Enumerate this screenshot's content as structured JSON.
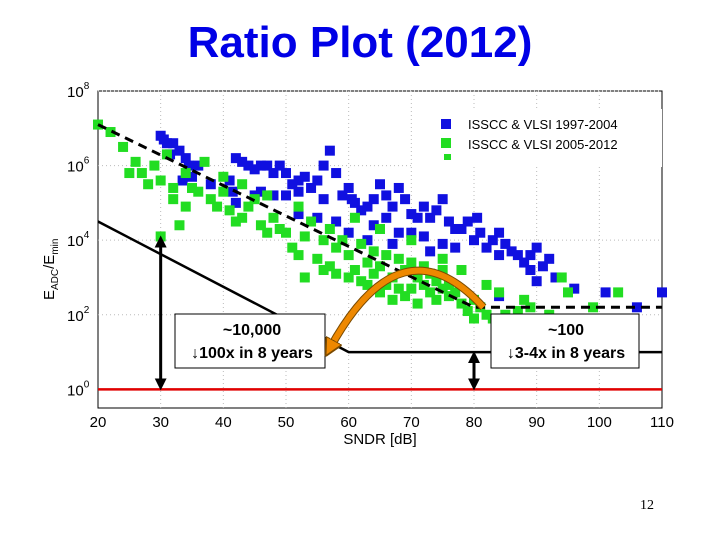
{
  "slide": {
    "title": "Ratio Plot (2012)",
    "page_number": "12"
  },
  "chart_data": {
    "type": "scatter",
    "xlabel": "SNDR [dB]",
    "ylabel": "E_ADC/E_min",
    "ylabel_parts": {
      "base": "E",
      "sub1": "ADC",
      "slash": "/E",
      "sub2": "min"
    },
    "x_ticks": [
      "20",
      "30",
      "40",
      "50",
      "60",
      "70",
      "80",
      "90",
      "100",
      "110"
    ],
    "y_ticks": [
      {
        "base": "10",
        "exp": "0"
      },
      {
        "base": "10",
        "exp": "2"
      },
      {
        "base": "10",
        "exp": "4"
      },
      {
        "base": "10",
        "exp": "6"
      },
      {
        "base": "10",
        "exp": "8"
      }
    ],
    "xlim": [
      20,
      110
    ],
    "ylim_log10": [
      -0.5,
      8
    ],
    "y_scale": "log",
    "grid": true,
    "legend_position": "top-right",
    "colors": {
      "blue": "#1010e0",
      "green": "#22dd22",
      "reference": "#e00000",
      "bound": "#000000",
      "arrow": "#ee8800"
    },
    "series": [
      {
        "name": "ISSCC & VLSI 1997-2004",
        "color": "#1010e0",
        "points": [
          [
            30,
            6.8
          ],
          [
            30.5,
            6.7
          ],
          [
            31,
            6.6
          ],
          [
            32,
            6.6
          ],
          [
            31.5,
            6.3
          ],
          [
            33,
            6.4
          ],
          [
            34,
            6.2
          ],
          [
            34.5,
            6.0
          ],
          [
            36,
            6.0
          ],
          [
            35,
            5.7
          ],
          [
            33.5,
            5.6
          ],
          [
            41,
            5.6
          ],
          [
            41.5,
            5.3
          ],
          [
            42,
            6.2
          ],
          [
            43,
            6.1
          ],
          [
            44,
            6.0
          ],
          [
            45,
            5.9
          ],
          [
            46,
            6.0
          ],
          [
            47,
            6.0
          ],
          [
            48,
            5.8
          ],
          [
            49,
            6.0
          ],
          [
            50,
            5.8
          ],
          [
            51,
            5.5
          ],
          [
            52,
            5.6
          ],
          [
            52,
            5.3
          ],
          [
            53,
            5.7
          ],
          [
            54,
            5.4
          ],
          [
            55,
            5.6
          ],
          [
            56,
            6.0
          ],
          [
            57,
            6.4
          ],
          [
            58,
            5.8
          ],
          [
            59,
            5.2
          ],
          [
            60,
            5.4
          ],
          [
            60.5,
            5.1
          ],
          [
            61,
            5.0
          ],
          [
            62,
            4.8
          ],
          [
            63,
            4.9
          ],
          [
            64,
            5.1
          ],
          [
            65,
            5.5
          ],
          [
            66,
            5.2
          ],
          [
            67,
            4.9
          ],
          [
            68,
            5.4
          ],
          [
            69,
            5.1
          ],
          [
            70,
            4.7
          ],
          [
            71,
            4.6
          ],
          [
            72,
            4.9
          ],
          [
            73,
            4.6
          ],
          [
            74,
            4.8
          ],
          [
            75,
            5.1
          ],
          [
            76,
            4.5
          ],
          [
            77,
            4.3
          ],
          [
            78,
            4.3
          ],
          [
            79,
            4.5
          ],
          [
            80,
            4.0
          ],
          [
            80.5,
            4.6
          ],
          [
            81,
            4.2
          ],
          [
            82,
            3.8
          ],
          [
            83,
            4.0
          ],
          [
            84,
            4.2
          ],
          [
            85,
            3.9
          ],
          [
            86,
            3.7
          ],
          [
            87,
            3.6
          ],
          [
            88,
            3.4
          ],
          [
            89,
            3.6
          ],
          [
            90,
            3.8
          ],
          [
            91,
            3.3
          ],
          [
            92,
            3.5
          ],
          [
            96,
            2.7
          ],
          [
            101,
            2.6
          ],
          [
            106,
            2.2
          ],
          [
            110,
            2.6
          ],
          [
            64,
            4.4
          ],
          [
            66,
            4.6
          ],
          [
            58,
            4.5
          ],
          [
            52,
            4.7
          ],
          [
            48,
            5.2
          ],
          [
            56,
            5.1
          ],
          [
            70,
            4.2
          ],
          [
            75,
            3.9
          ],
          [
            72,
            4.1
          ],
          [
            63,
            4.0
          ],
          [
            68,
            4.2
          ],
          [
            60,
            4.2
          ],
          [
            55,
            4.6
          ],
          [
            45,
            5.2
          ],
          [
            38,
            5.5
          ],
          [
            42,
            5.0
          ],
          [
            46,
            5.3
          ],
          [
            50,
            5.2
          ],
          [
            67,
            3.9
          ],
          [
            73,
            3.7
          ],
          [
            77,
            3.8
          ],
          [
            84,
            3.6
          ],
          [
            89,
            3.2
          ],
          [
            84,
            2.5
          ],
          [
            90,
            2.9
          ],
          [
            93,
            3.0
          ]
        ]
      },
      {
        "name": "ISSCC & VLSI 2005-2012",
        "color": "#22dd22",
        "points": [
          [
            20,
            7.1
          ],
          [
            22,
            6.9
          ],
          [
            24,
            6.5
          ],
          [
            25,
            5.8
          ],
          [
            26,
            6.1
          ],
          [
            27,
            5.8
          ],
          [
            28,
            5.5
          ],
          [
            29,
            6.0
          ],
          [
            30,
            5.6
          ],
          [
            30,
            4.1
          ],
          [
            31,
            6.3
          ],
          [
            32,
            5.4
          ],
          [
            32,
            5.1
          ],
          [
            33,
            4.4
          ],
          [
            34,
            5.8
          ],
          [
            34,
            4.9
          ],
          [
            35,
            5.4
          ],
          [
            36,
            5.3
          ],
          [
            38,
            5.1
          ],
          [
            39,
            4.9
          ],
          [
            40,
            5.3
          ],
          [
            41,
            4.8
          ],
          [
            42,
            4.5
          ],
          [
            43,
            4.6
          ],
          [
            44,
            4.9
          ],
          [
            45,
            5.1
          ],
          [
            46,
            4.4
          ],
          [
            47,
            4.2
          ],
          [
            48,
            4.6
          ],
          [
            49,
            4.3
          ],
          [
            50,
            4.2
          ],
          [
            51,
            3.8
          ],
          [
            52,
            3.6
          ],
          [
            53,
            4.1
          ],
          [
            53,
            3.0
          ],
          [
            54,
            4.5
          ],
          [
            55,
            3.5
          ],
          [
            56,
            3.2
          ],
          [
            57,
            4.3
          ],
          [
            57,
            3.3
          ],
          [
            58,
            3.8
          ],
          [
            58,
            3.1
          ],
          [
            59,
            4.0
          ],
          [
            60,
            3.6
          ],
          [
            60,
            3.0
          ],
          [
            61,
            3.2
          ],
          [
            62,
            3.9
          ],
          [
            62,
            2.9
          ],
          [
            63,
            3.4
          ],
          [
            63,
            2.8
          ],
          [
            64,
            3.7
          ],
          [
            64,
            3.1
          ],
          [
            65,
            3.3
          ],
          [
            65,
            2.6
          ],
          [
            66,
            3.6
          ],
          [
            66,
            2.8
          ],
          [
            67,
            3.0
          ],
          [
            67,
            2.4
          ],
          [
            68,
            3.5
          ],
          [
            68,
            2.7
          ],
          [
            69,
            3.2
          ],
          [
            69,
            2.5
          ],
          [
            70,
            3.4
          ],
          [
            70,
            2.7
          ],
          [
            71,
            3.0
          ],
          [
            71,
            2.3
          ],
          [
            72,
            2.8
          ],
          [
            72,
            3.3
          ],
          [
            73,
            2.6
          ],
          [
            73,
            3.1
          ],
          [
            74,
            2.9
          ],
          [
            74,
            2.4
          ],
          [
            75,
            3.2
          ],
          [
            75,
            2.7
          ],
          [
            76,
            2.8
          ],
          [
            76,
            2.5
          ],
          [
            77,
            2.6
          ],
          [
            78,
            2.3
          ],
          [
            79,
            2.1
          ],
          [
            80,
            2.4
          ],
          [
            80,
            1.9
          ],
          [
            81,
            2.2
          ],
          [
            82,
            2.0
          ],
          [
            83,
            1.9
          ],
          [
            84,
            1.8
          ],
          [
            85,
            2.0
          ],
          [
            86,
            1.8
          ],
          [
            87,
            2.1
          ],
          [
            88,
            1.9
          ],
          [
            89,
            2.2
          ],
          [
            92,
            2.0
          ],
          [
            94,
            3.0
          ],
          [
            95,
            2.6
          ],
          [
            99,
            2.2
          ],
          [
            103,
            2.6
          ],
          [
            52,
            4.9
          ],
          [
            47,
            5.2
          ],
          [
            40,
            5.7
          ],
          [
            37,
            6.1
          ],
          [
            43,
            5.5
          ],
          [
            61,
            4.6
          ],
          [
            65,
            4.3
          ],
          [
            70,
            4.0
          ],
          [
            56,
            4.0
          ],
          [
            75,
            3.5
          ],
          [
            78,
            3.2
          ],
          [
            82,
            2.8
          ],
          [
            84,
            2.6
          ],
          [
            88,
            2.4
          ]
        ]
      }
    ],
    "bounds": {
      "dashed_line_2004": [
        [
          20,
          7.1
        ],
        [
          80,
          2.2
        ],
        [
          110,
          2.2
        ]
      ],
      "solid_line_2012": [
        [
          20,
          4.5
        ],
        [
          60,
          1.0
        ],
        [
          110,
          1.0
        ]
      ],
      "reference_line": 0.0
    },
    "arrows": [
      {
        "from": [
          81.5,
          2.2
        ],
        "to": [
          57,
          1.1
        ],
        "type": "curved",
        "color": "#ee8800"
      },
      {
        "x": 30,
        "from_y": 4.1,
        "to_y": 0.0,
        "type": "double"
      },
      {
        "x": 80,
        "from_y": 1.0,
        "to_y": 0.0,
        "type": "double"
      }
    ],
    "annotations": [
      {
        "lines": [
          "~10,000",
          "↓100x in 8 years"
        ]
      },
      {
        "lines": [
          "~100",
          "↓3-4x in 8 years"
        ]
      }
    ]
  }
}
